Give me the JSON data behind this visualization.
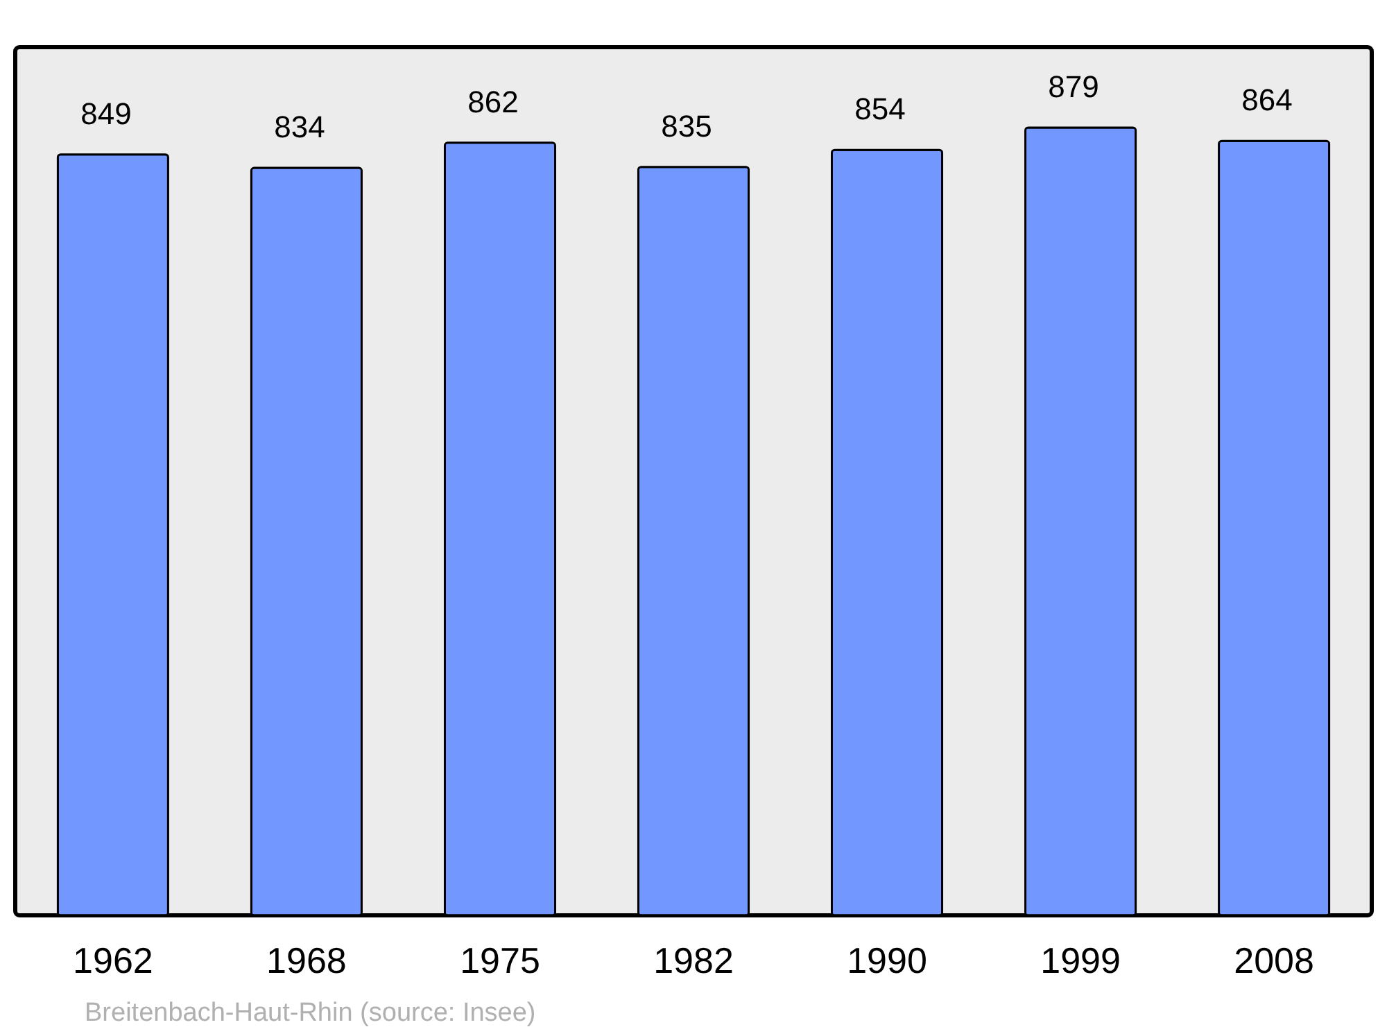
{
  "chart_data": {
    "type": "bar",
    "categories": [
      "1962",
      "1968",
      "1975",
      "1982",
      "1990",
      "1999",
      "2008"
    ],
    "values": [
      849,
      834,
      862,
      835,
      854,
      879,
      864
    ],
    "color": "#7298ff",
    "data_labels": true,
    "grid": false,
    "annotations": [
      "Breitenbach-Haut-Rhin    (source: Insee)"
    ]
  }
}
